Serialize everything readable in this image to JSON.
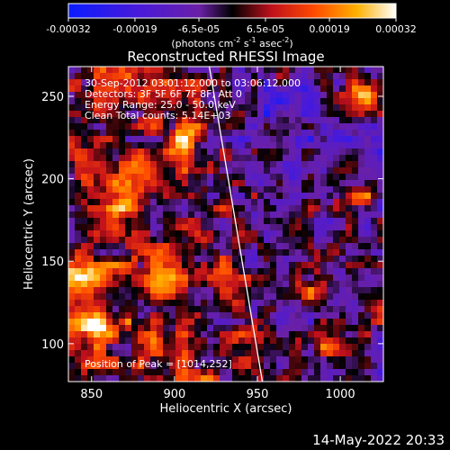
{
  "chart_data": {
    "type": "heatmap",
    "title": "Reconstructed RHESSI Image",
    "xlabel": "Heliocentric X (arcsec)",
    "ylabel": "Heliocentric Y (arcsec)",
    "xlim": [
      836,
      1026
    ],
    "ylim": [
      77,
      268
    ],
    "xticks": [
      {
        "value": 850,
        "label": "850"
      },
      {
        "value": 900,
        "label": "900"
      },
      {
        "value": 950,
        "label": "950"
      },
      {
        "value": 1000,
        "label": "1000"
      }
    ],
    "yticks": [
      {
        "value": 100,
        "label": "100"
      },
      {
        "value": 150,
        "label": "150"
      },
      {
        "value": 200,
        "label": "200"
      },
      {
        "value": 250,
        "label": "250"
      }
    ],
    "colorbar": {
      "min": -0.00032,
      "max": 0.00032,
      "ticks": [
        {
          "value": -0.00032,
          "label": "-0.00032"
        },
        {
          "value": -0.00019,
          "label": "-0.00019"
        },
        {
          "value": -6.5e-05,
          "label": "-6.5e-05"
        },
        {
          "value": 6.5e-05,
          "label": "6.5e-05"
        },
        {
          "value": 0.00019,
          "label": "0.00019"
        },
        {
          "value": 0.00032,
          "label": "0.00032"
        }
      ],
      "unit_label": "(photons cm",
      "unit_exp1": "-2",
      "unit_mid": " s",
      "unit_exp2": "-1",
      "unit_mid2": " asec",
      "unit_exp3": "-2",
      "unit_end": ")"
    },
    "annotations": [
      "30-Sep-2012 03:01:12.000 to 03:06:12.000",
      "Detectors: 3F 5F 6F 7F 8F, Att 0",
      "Energy Range: 25.0 - 50.0 keV",
      "Clean    Total counts: 5.14E+03"
    ],
    "peak_label": "Position of Peak = [1014,252]",
    "peak_position": [
      1014,
      252
    ],
    "limb_line": [
      [
        921,
        268
      ],
      [
        953,
        77
      ]
    ],
    "hotspots": [
      {
        "x": 850,
        "y": 110,
        "v": 1.0
      },
      {
        "x": 1014,
        "y": 252,
        "v": 1.0
      },
      {
        "x": 845,
        "y": 140,
        "v": 0.8
      },
      {
        "x": 895,
        "y": 140,
        "v": 0.6
      },
      {
        "x": 870,
        "y": 190,
        "v": 0.6
      },
      {
        "x": 905,
        "y": 225,
        "v": 0.55
      },
      {
        "x": 985,
        "y": 135,
        "v": 0.55
      },
      {
        "x": 1015,
        "y": 190,
        "v": 0.55
      },
      {
        "x": 995,
        "y": 100,
        "v": 0.5
      },
      {
        "x": 930,
        "y": 150,
        "v": 0.45
      }
    ]
  },
  "footer": {
    "timestamp": "14-May-2022 20:33"
  }
}
